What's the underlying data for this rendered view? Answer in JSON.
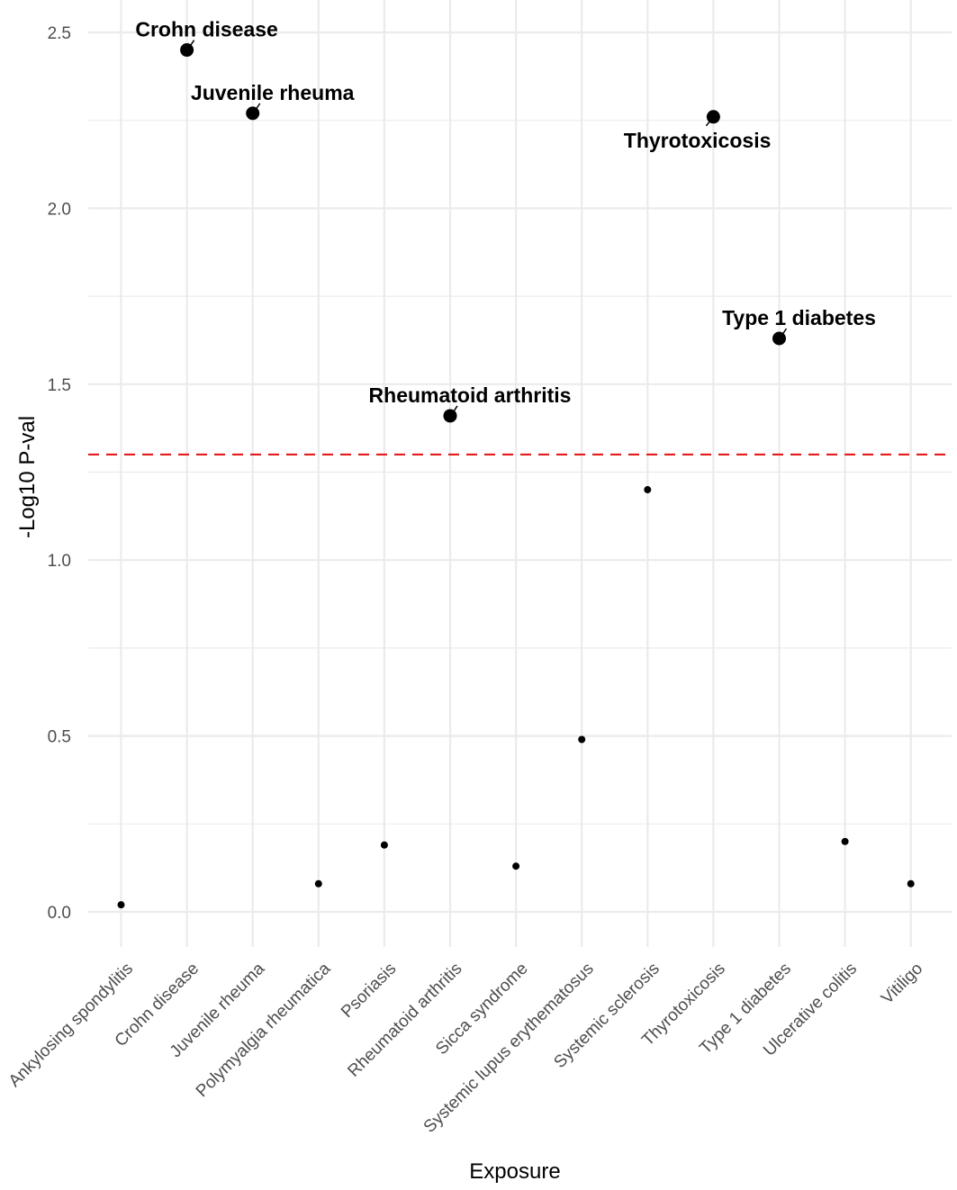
{
  "chart_data": {
    "type": "scatter",
    "title": "",
    "xlabel": "Exposure",
    "ylabel": "-Log10 P-val",
    "ylim": [
      -0.1,
      2.6
    ],
    "yticks": [
      0.0,
      0.5,
      1.0,
      1.5,
      2.0,
      2.5
    ],
    "ytick_labels": [
      "0.0",
      "0.5",
      "1.0",
      "1.5",
      "2.0",
      "2.5"
    ],
    "threshold": 1.3,
    "colors": {
      "threshold_line": "#e41a1c",
      "points": "#000000",
      "grid": "#ebebeb"
    },
    "categories": [
      "Ankylosing spondylitis",
      "Crohn disease",
      "Juvenile rheuma",
      "Polymyalgia rheumatica",
      "Psoriasis",
      "Rheumatoid arthritis",
      "Sicca syndrome",
      "Systemic lupus erythematosus",
      "Systemic sclerosis",
      "Thyrotoxicosis",
      "Type 1 diabetes",
      "Ulcerative colitis",
      "Vitiligo"
    ],
    "values": [
      0.02,
      2.45,
      2.27,
      0.08,
      0.19,
      1.41,
      0.13,
      0.49,
      1.2,
      2.26,
      1.63,
      0.2,
      0.08
    ],
    "labels": [
      {
        "category": "Crohn disease",
        "text": "Crohn disease",
        "position": "top-right"
      },
      {
        "category": "Juvenile rheuma",
        "text": "Juvenile rheuma",
        "position": "top-right"
      },
      {
        "category": "Rheumatoid arthritis",
        "text": "Rheumatoid arthritis",
        "position": "top-right"
      },
      {
        "category": "Thyrotoxicosis",
        "text": "Thyrotoxicosis",
        "position": "bottom-left"
      },
      {
        "category": "Type 1 diabetes",
        "text": "Type 1 diabetes",
        "position": "top-right"
      }
    ]
  }
}
